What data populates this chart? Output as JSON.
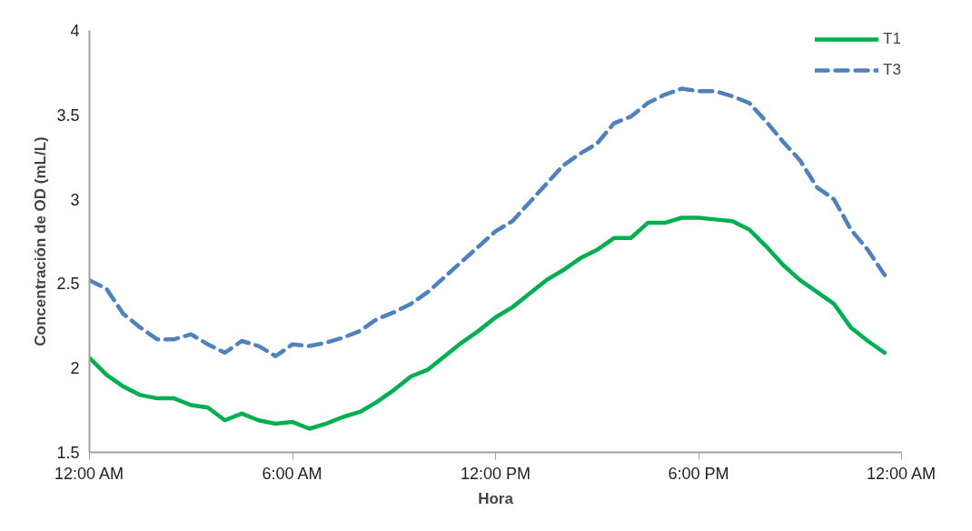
{
  "chart_data": {
    "type": "line",
    "xlabel": "Hora",
    "ylabel": "Concentración de OD (mL/L)",
    "x": [
      0,
      0.5,
      1,
      1.5,
      2,
      2.5,
      3,
      3.5,
      4,
      4.5,
      5,
      5.5,
      6,
      6.5,
      7,
      7.5,
      8,
      8.5,
      9,
      9.5,
      10,
      10.5,
      11,
      11.5,
      12,
      12.5,
      13,
      13.5,
      14,
      14.5,
      15,
      15.5,
      16,
      16.5,
      17,
      17.5,
      18,
      18.5,
      19,
      19.5,
      20,
      20.5,
      21,
      21.5,
      22,
      22.5,
      23,
      23.5
    ],
    "series": [
      {
        "name": "T1",
        "color": "#00b050",
        "line_style": "solid",
        "values": [
          2.06,
          1.96,
          1.89,
          1.84,
          1.82,
          1.82,
          1.78,
          1.765,
          1.69,
          1.73,
          1.69,
          1.67,
          1.68,
          1.64,
          1.67,
          1.71,
          1.74,
          1.8,
          1.87,
          1.95,
          1.99,
          2.07,
          2.15,
          2.22,
          2.3,
          2.36,
          2.44,
          2.52,
          2.58,
          2.65,
          2.7,
          2.77,
          2.77,
          2.86,
          2.86,
          2.89,
          2.89,
          2.88,
          2.87,
          2.82,
          2.72,
          2.61,
          2.52,
          2.45,
          2.38,
          2.24,
          2.16,
          2.09
        ]
      },
      {
        "name": "T3",
        "color": "#4f81bd",
        "line_style": "dashed",
        "values": [
          2.52,
          2.47,
          2.32,
          2.24,
          2.17,
          2.17,
          2.2,
          2.14,
          2.09,
          2.16,
          2.13,
          2.07,
          2.14,
          2.13,
          2.15,
          2.18,
          2.22,
          2.29,
          2.33,
          2.38,
          2.45,
          2.54,
          2.63,
          2.72,
          2.81,
          2.87,
          2.98,
          3.09,
          3.2,
          3.27,
          3.33,
          3.45,
          3.49,
          3.57,
          3.62,
          3.655,
          3.64,
          3.64,
          3.61,
          3.57,
          3.46,
          3.34,
          3.23,
          3.07,
          3.0,
          2.82,
          2.7,
          2.55
        ]
      }
    ],
    "xlim": [
      0,
      24
    ],
    "xticks": [
      {
        "value": 0,
        "label": "12:00 AM"
      },
      {
        "value": 6,
        "label": "6:00 AM"
      },
      {
        "value": 12,
        "label": "12:00 PM"
      },
      {
        "value": 18,
        "label": "6:00 PM"
      },
      {
        "value": 24,
        "label": "12:00 AM"
      }
    ],
    "ylim": [
      1.5,
      4
    ],
    "yticks": [
      1.5,
      2,
      2.5,
      3,
      3.5,
      4
    ],
    "grid": false,
    "legend": "top right",
    "marker": "none"
  }
}
